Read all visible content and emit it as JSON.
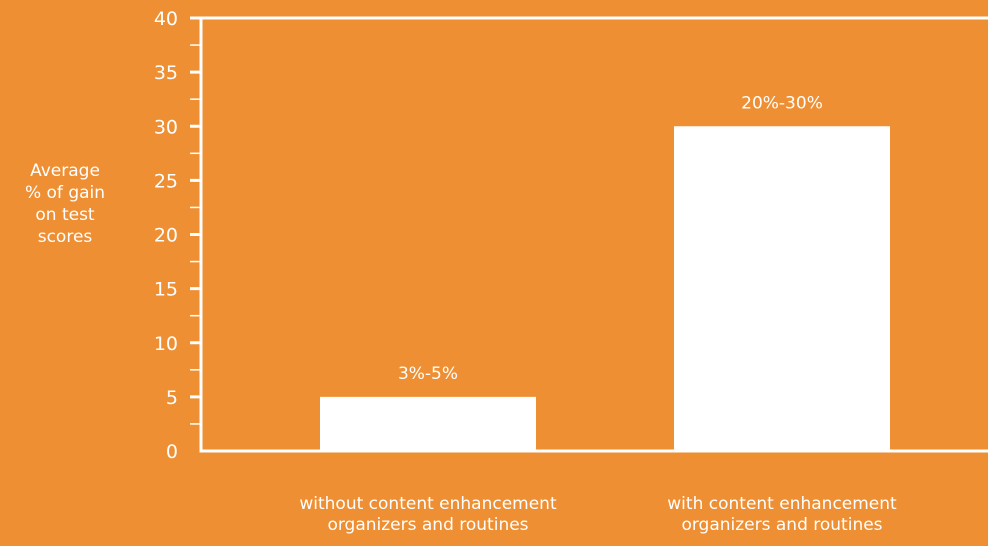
{
  "chart_data": {
    "type": "bar",
    "title": "",
    "ylabel_lines": [
      "Average",
      "% of gain",
      "on test",
      "scores"
    ],
    "xlabel": "",
    "categories_lines": [
      [
        "without content enhancement",
        "organizers and routines"
      ],
      [
        "with content enhancement",
        "organizers and routines"
      ]
    ],
    "values": [
      5,
      30
    ],
    "data_labels": [
      "3%-5%",
      "20%-30%"
    ],
    "ylim": [
      0,
      40
    ],
    "y_major_ticks": [
      0,
      5,
      10,
      15,
      20,
      25,
      30,
      35,
      40
    ],
    "y_minor_step": 2.5,
    "grid": false,
    "legend": "none"
  },
  "colors": {
    "background": "#ee8f33",
    "bar": "#ffffff",
    "axis": "#ffffff",
    "text": "#ffffff"
  }
}
